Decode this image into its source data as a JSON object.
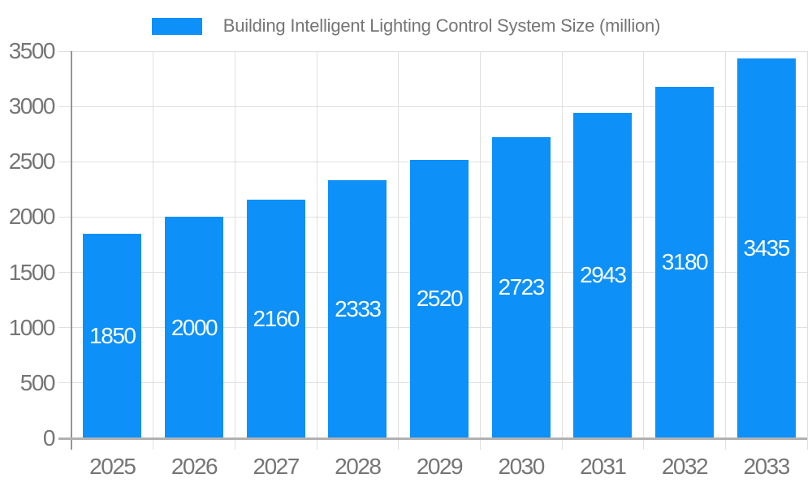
{
  "chart_data": {
    "type": "bar",
    "title": "Building Intelligent Lighting Control System Size (million)",
    "legend": {
      "position": "top",
      "entries": [
        "Building Intelligent Lighting Control System Size (million)"
      ]
    },
    "categories": [
      "2025",
      "2026",
      "2027",
      "2028",
      "2029",
      "2030",
      "2031",
      "2032",
      "2033"
    ],
    "series": [
      {
        "name": "Building Intelligent Lighting Control System Size (million)",
        "values": [
          1850,
          2000,
          2160,
          2333,
          2520,
          2723,
          2943,
          3180,
          3435
        ]
      }
    ],
    "value_labels_shown": true,
    "xlabel": "",
    "ylabel": "",
    "ylim": [
      0,
      3500
    ],
    "yticks": [
      0,
      500,
      1000,
      1500,
      2000,
      2500,
      3000,
      3500
    ],
    "grid": true,
    "colors": {
      "bar": "#0d90f7",
      "value_label": "#ffffff",
      "axis_text": "#757575",
      "legend_text": "#757575",
      "grid": "#e0e0e0",
      "axis_line_y": "#949494",
      "axis_line_x": "#b1b1b1"
    }
  }
}
